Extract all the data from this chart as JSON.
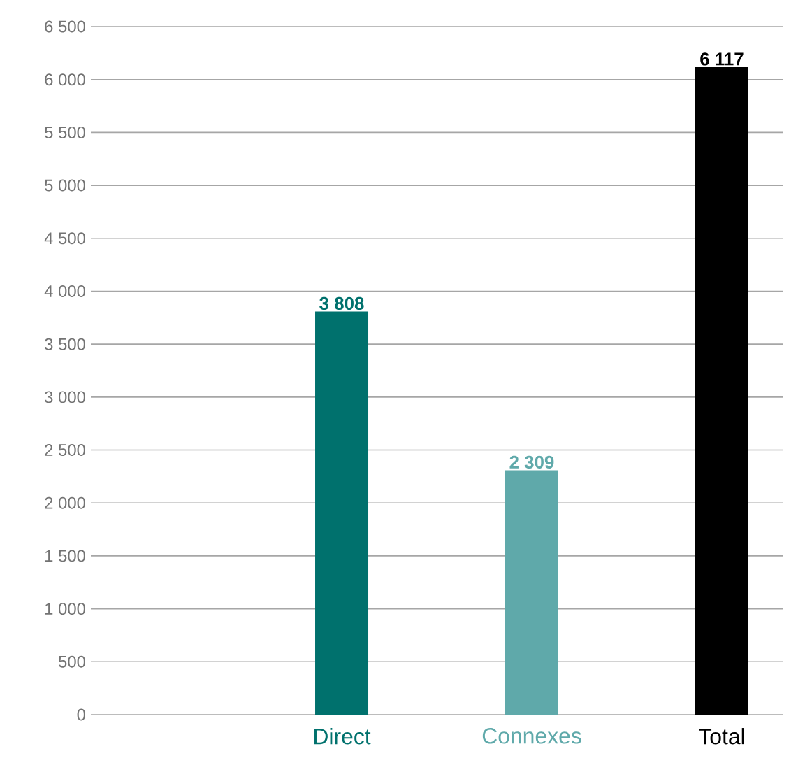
{
  "chart_data": {
    "type": "bar",
    "categories": [
      "Direct",
      "Connexes",
      "Total"
    ],
    "values": [
      3808,
      2309,
      6117
    ],
    "colors": [
      "#00716d",
      "#5fa9aa",
      "#000000"
    ],
    "value_labels": [
      "3 808",
      "2 309",
      "6 117"
    ],
    "ylim": [
      0,
      6500
    ],
    "yticks": [
      0,
      500,
      {
        "value": 1000,
        "label": "1 000"
      },
      {
        "value": 1500,
        "label": "1 500"
      },
      {
        "value": 2000,
        "label": "2 000"
      },
      {
        "value": 2500,
        "label": "2 500"
      },
      {
        "value": 3000,
        "label": "3 000"
      },
      {
        "value": 3500,
        "label": "3 500"
      },
      {
        "value": 4000,
        "label": "4 000"
      },
      {
        "value": 4500,
        "label": "4 500"
      },
      {
        "value": 5000,
        "label": "5 000"
      },
      {
        "value": 5500,
        "label": "5 500"
      },
      {
        "value": 6000,
        "label": "6 000"
      },
      {
        "value": 6500,
        "label": "6 500"
      }
    ],
    "grid": "y"
  }
}
